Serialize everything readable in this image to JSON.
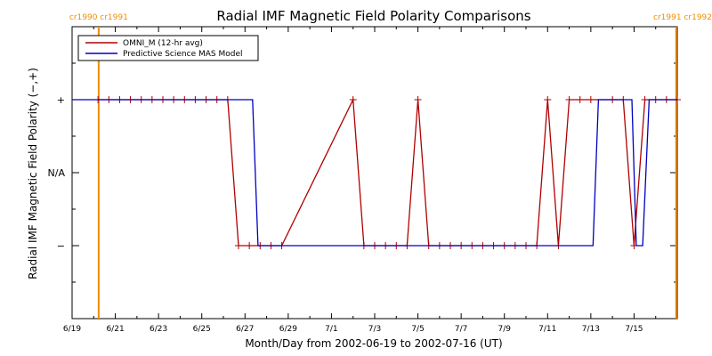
{
  "chart_data": {
    "type": "line",
    "title": "Radial IMF Magnetic Field Polarity Comparisons",
    "xlabel": "Month/Day from 2002-06-19 to 2002-07-16 (UT)",
    "ylabel": "Radial IMF Magnetic Field Polarity (−,+)",
    "x_range_days": [
      0,
      28
    ],
    "x_ticks": [
      {
        "day": 0,
        "label": "6/19"
      },
      {
        "day": 2,
        "label": "6/21"
      },
      {
        "day": 4,
        "label": "6/23"
      },
      {
        "day": 6,
        "label": "6/25"
      },
      {
        "day": 8,
        "label": "6/27"
      },
      {
        "day": 10,
        "label": "6/29"
      },
      {
        "day": 12,
        "label": "7/1"
      },
      {
        "day": 14,
        "label": "7/3"
      },
      {
        "day": 16,
        "label": "7/5"
      },
      {
        "day": 18,
        "label": "7/7"
      },
      {
        "day": 20,
        "label": "7/9"
      },
      {
        "day": 22,
        "label": "7/11"
      },
      {
        "day": 24,
        "label": "7/13"
      },
      {
        "day": 26,
        "label": "7/15"
      }
    ],
    "y_levels": [
      {
        "value": 1,
        "label": "+"
      },
      {
        "value": 0,
        "label": "N/A"
      },
      {
        "value": -1,
        "label": "−"
      }
    ],
    "ylim": [
      -2,
      2
    ],
    "legend_position": "top-left",
    "rotation_markers": [
      {
        "day": 1.23,
        "labels": [
          "cr1990",
          "cr1991"
        ],
        "color": "#f08c00"
      },
      {
        "day": 27.95,
        "labels": [
          "cr1991",
          "cr1992"
        ],
        "color": "#f08c00"
      }
    ],
    "series": [
      {
        "name": "OMNI_M (12-hr avg)",
        "color": "#b00000",
        "markers": true,
        "points": [
          [
            1.2,
            1
          ],
          [
            1.7,
            1
          ],
          [
            2.2,
            1
          ],
          [
            2.7,
            1
          ],
          [
            3.2,
            1
          ],
          [
            3.7,
            1
          ],
          [
            4.2,
            1
          ],
          [
            4.7,
            1
          ],
          [
            5.2,
            1
          ],
          [
            5.7,
            1
          ],
          [
            6.2,
            1
          ],
          [
            6.7,
            1
          ],
          [
            7.2,
            1
          ],
          [
            7.7,
            -1
          ],
          [
            8.2,
            -1
          ],
          [
            8.7,
            -1
          ],
          [
            9.2,
            -1
          ],
          [
            9.7,
            -1
          ],
          [
            13.0,
            1
          ],
          [
            13.5,
            -1
          ],
          [
            14.0,
            -1
          ],
          [
            14.5,
            -1
          ],
          [
            15.0,
            -1
          ],
          [
            15.5,
            -1
          ],
          [
            16.0,
            1
          ],
          [
            16.5,
            -1
          ],
          [
            17.0,
            -1
          ],
          [
            17.5,
            -1
          ],
          [
            18.0,
            -1
          ],
          [
            18.5,
            -1
          ],
          [
            19.0,
            -1
          ],
          [
            19.5,
            -1
          ],
          [
            20.0,
            -1
          ],
          [
            20.5,
            -1
          ],
          [
            21.0,
            -1
          ],
          [
            21.5,
            -1
          ],
          [
            22.0,
            1
          ],
          [
            22.5,
            -1
          ],
          [
            23.0,
            1
          ],
          [
            23.5,
            1
          ],
          [
            24.0,
            1
          ],
          [
            25.0,
            1
          ],
          [
            25.5,
            1
          ],
          [
            26.0,
            -1
          ],
          [
            26.5,
            1
          ],
          [
            27.0,
            1
          ],
          [
            27.5,
            1
          ],
          [
            28.0,
            1
          ]
        ]
      },
      {
        "name": "Predictive Science MAS Model",
        "color": "#0000c0",
        "markers": false,
        "points": [
          [
            0,
            1
          ],
          [
            8.35,
            1
          ],
          [
            8.6,
            -1
          ],
          [
            24.1,
            -1
          ],
          [
            24.35,
            1
          ],
          [
            25.9,
            1
          ],
          [
            26.1,
            -1
          ],
          [
            26.4,
            -1
          ],
          [
            26.7,
            1
          ],
          [
            28,
            1
          ]
        ]
      }
    ]
  }
}
